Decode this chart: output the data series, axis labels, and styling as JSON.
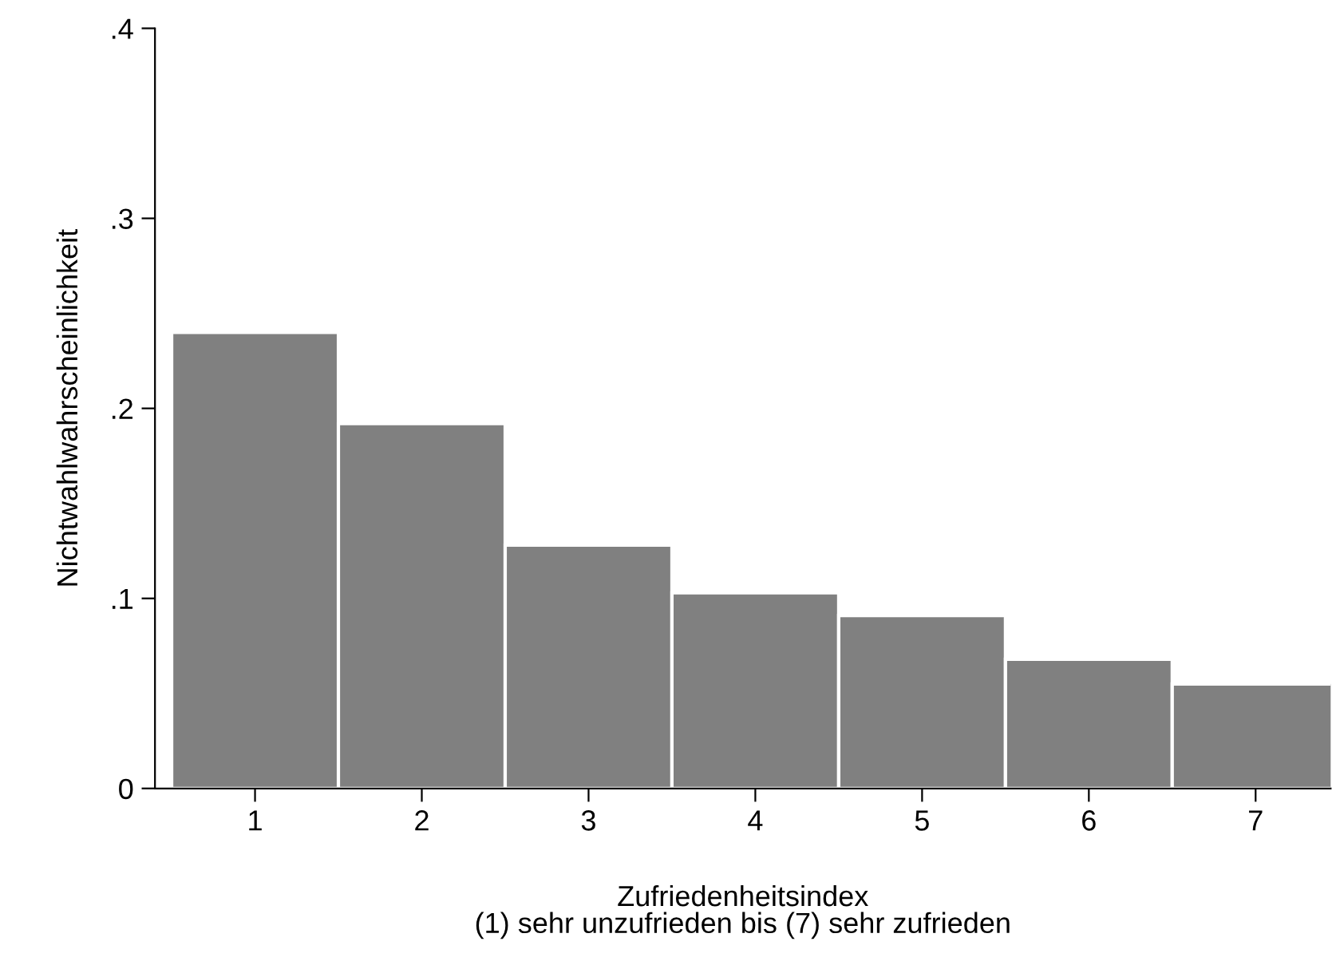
{
  "chart_data": {
    "type": "bar",
    "xlabel": "Zufriedenheitsindex\n(1) sehr unzufrieden bis (7) sehr zufrieden",
    "ylabel": "Nichtwahlwahrscheinlichkeit",
    "x": [
      1,
      2,
      3,
      4,
      5,
      6,
      7
    ],
    "values": [
      0.24,
      0.192,
      0.128,
      0.103,
      0.091,
      0.068,
      0.055
    ],
    "color": "#808080",
    "xlim": [
      0.4,
      7.45
    ],
    "xticks": [
      1,
      2,
      3,
      4,
      5,
      6,
      7
    ],
    "ylim": [
      0,
      0.4
    ],
    "yticks": [
      {
        "value": 0,
        "label": "0"
      },
      {
        "value": 0.1,
        "label": ".1"
      },
      {
        "value": 0.2,
        "label": ".2"
      },
      {
        "value": 0.3,
        "label": ".3"
      },
      {
        "value": 0.4,
        "label": ".4"
      }
    ],
    "grid": false,
    "legend": false
  }
}
